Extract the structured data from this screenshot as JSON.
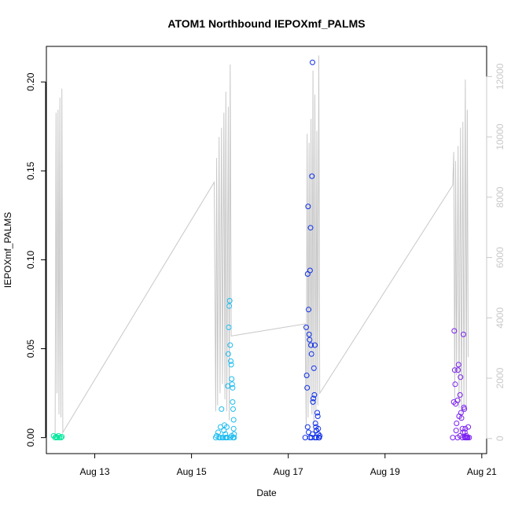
{
  "chart_data": {
    "type": "scatter",
    "title": "ATOM1 Northbound IEPOXmf_PALMS",
    "xlabel": "Date",
    "ylabel": "IEPOXmf_PALMS",
    "x_ticks": [
      "Aug 13",
      "Aug 15",
      "Aug 17",
      "Aug 19",
      "Aug 21"
    ],
    "x_tick_values": [
      13,
      15,
      17,
      19,
      21
    ],
    "xlim": [
      12.0,
      21.1
    ],
    "y_ticks": [
      "0.00",
      "0.05",
      "0.10",
      "0.15",
      "0.20"
    ],
    "y_tick_values": [
      0,
      0.05,
      0.1,
      0.15,
      0.2
    ],
    "ylim": [
      -0.009,
      0.22
    ],
    "y2_ticks": [
      "0",
      "2000",
      "4000",
      "6000",
      "8000",
      "10000",
      "12000"
    ],
    "y2_tick_values": [
      0,
      2000,
      4000,
      6000,
      8000,
      10000,
      12000
    ],
    "y2lim": [
      -500,
      13000
    ],
    "colors": {
      "altitude_line": "#c8c8c8",
      "right_axis": "#c8c8c8",
      "flight1": "#00e89c",
      "flight2": "#1cbcf0",
      "flight3": "#1030e8",
      "flight4": "#7a20f0"
    },
    "series": [
      {
        "color": "#00e89c",
        "points": [
          [
            12.15,
            0.001
          ],
          [
            12.18,
            0.0
          ],
          [
            12.2,
            0.0005
          ],
          [
            12.22,
            0.0
          ],
          [
            12.25,
            0.001
          ],
          [
            12.27,
            0.0
          ],
          [
            12.3,
            0.0
          ],
          [
            12.32,
            0.0005
          ]
        ]
      },
      {
        "color": "#1cbcf0",
        "points": [
          [
            15.5,
            0.0
          ],
          [
            15.52,
            0.001
          ],
          [
            15.55,
            0.003
          ],
          [
            15.57,
            0.0
          ],
          [
            15.6,
            0.006
          ],
          [
            15.62,
            0.016
          ],
          [
            15.65,
            0.0
          ],
          [
            15.67,
            0.004
          ],
          [
            15.68,
            0.007
          ],
          [
            15.7,
            0.002
          ],
          [
            15.72,
            0.0
          ],
          [
            15.73,
            0.006
          ],
          [
            15.75,
            0.029
          ],
          [
            15.76,
            0.047
          ],
          [
            15.77,
            0.062
          ],
          [
            15.78,
            0.074
          ],
          [
            15.79,
            0.077
          ],
          [
            15.8,
            0.052
          ],
          [
            15.81,
            0.043
          ],
          [
            15.82,
            0.041
          ],
          [
            15.83,
            0.033
          ],
          [
            15.84,
            0.03
          ],
          [
            15.85,
            0.028
          ],
          [
            15.85,
            0.02
          ],
          [
            15.86,
            0.016
          ],
          [
            15.87,
            0.01
          ],
          [
            15.87,
            0.005
          ],
          [
            15.88,
            0.002
          ],
          [
            15.88,
            0.0
          ],
          [
            15.86,
            0.0
          ],
          [
            15.6,
            0.0
          ],
          [
            15.64,
            0.0
          ],
          [
            15.7,
            0.0
          ],
          [
            15.74,
            0.0
          ],
          [
            15.8,
            0.0
          ],
          [
            15.83,
            0.001
          ]
        ]
      },
      {
        "color": "#1030e8",
        "points": [
          [
            17.35,
            0.0
          ],
          [
            17.37,
            0.062
          ],
          [
            17.38,
            0.035
          ],
          [
            17.39,
            0.028
          ],
          [
            17.4,
            0.092
          ],
          [
            17.41,
            0.13
          ],
          [
            17.42,
            0.072
          ],
          [
            17.43,
            0.058
          ],
          [
            17.44,
            0.055
          ],
          [
            17.45,
            0.094
          ],
          [
            17.46,
            0.118
          ],
          [
            17.47,
            0.052
          ],
          [
            17.48,
            0.047
          ],
          [
            17.49,
            0.147
          ],
          [
            17.5,
            0.211
          ],
          [
            17.51,
            0.02
          ],
          [
            17.52,
            0.022
          ],
          [
            17.53,
            0.039
          ],
          [
            17.54,
            0.024
          ],
          [
            17.55,
            0.052
          ],
          [
            17.56,
            0.008
          ],
          [
            17.57,
            0.006
          ],
          [
            17.58,
            0.004
          ],
          [
            17.6,
            0.014
          ],
          [
            17.61,
            0.012
          ],
          [
            17.62,
            0.002
          ],
          [
            17.63,
            0.0
          ],
          [
            17.64,
            0.0
          ],
          [
            17.65,
            0.001
          ],
          [
            17.4,
            0.006
          ],
          [
            17.42,
            0.003
          ],
          [
            17.45,
            0.0
          ],
          [
            17.48,
            0.0
          ],
          [
            17.5,
            0.002
          ],
          [
            17.55,
            0.0
          ],
          [
            17.58,
            0.0
          ],
          [
            17.62,
            0.005
          ]
        ]
      },
      {
        "color": "#7a20f0",
        "points": [
          [
            20.4,
            0.0
          ],
          [
            20.42,
            0.02
          ],
          [
            20.43,
            0.06
          ],
          [
            20.44,
            0.038
          ],
          [
            20.45,
            0.03
          ],
          [
            20.46,
            0.019
          ],
          [
            20.47,
            0.004
          ],
          [
            20.48,
            0.008
          ],
          [
            20.5,
            0.021
          ],
          [
            20.51,
            0.038
          ],
          [
            20.52,
            0.041
          ],
          [
            20.53,
            0.012
          ],
          [
            20.55,
            0.024
          ],
          [
            20.56,
            0.034
          ],
          [
            20.57,
            0.014
          ],
          [
            20.58,
            0.011
          ],
          [
            20.6,
            0.005
          ],
          [
            20.61,
            0.003
          ],
          [
            20.62,
            0.058
          ],
          [
            20.63,
            0.017
          ],
          [
            20.64,
            0.016
          ],
          [
            20.65,
            0.003
          ],
          [
            20.66,
            0.005
          ],
          [
            20.67,
            0.0
          ],
          [
            20.68,
            0.001
          ],
          [
            20.7,
            0.0
          ],
          [
            20.72,
            0.006
          ],
          [
            20.74,
            0.0
          ],
          [
            20.5,
            0.0
          ],
          [
            20.55,
            0.001
          ],
          [
            20.6,
            0.0
          ],
          [
            20.65,
            0.0
          ],
          [
            20.69,
            0.0
          ],
          [
            20.71,
            0.0
          ]
        ]
      }
    ],
    "altitude_line": {
      "note_units": "right axis",
      "points": [
        [
          12.18,
          0
        ],
        [
          12.2,
          10800
        ],
        [
          12.22,
          1500
        ],
        [
          12.24,
          10900
        ],
        [
          12.26,
          800
        ],
        [
          12.28,
          11300
        ],
        [
          12.3,
          700
        ],
        [
          12.32,
          11600
        ],
        [
          12.34,
          200
        ],
        [
          15.47,
          8500
        ],
        [
          15.5,
          900
        ],
        [
          15.52,
          9300
        ],
        [
          15.54,
          1100
        ],
        [
          15.57,
          10000
        ],
        [
          15.59,
          1500
        ],
        [
          15.62,
          10300
        ],
        [
          15.64,
          1800
        ],
        [
          15.67,
          10800
        ],
        [
          15.69,
          1300
        ],
        [
          15.71,
          11500
        ],
        [
          15.73,
          900
        ],
        [
          15.76,
          11000
        ],
        [
          15.78,
          600
        ],
        [
          15.8,
          12400
        ],
        [
          15.82,
          3400
        ],
        [
          17.35,
          3800
        ],
        [
          17.37,
          400
        ],
        [
          17.39,
          10100
        ],
        [
          17.41,
          700
        ],
        [
          17.43,
          9800
        ],
        [
          17.45,
          1200
        ],
        [
          17.47,
          10600
        ],
        [
          17.49,
          800
        ],
        [
          17.51,
          12200
        ],
        [
          17.53,
          500
        ],
        [
          17.55,
          11400
        ],
        [
          17.57,
          900
        ],
        [
          17.59,
          10200
        ],
        [
          17.61,
          1100
        ],
        [
          17.63,
          12700
        ],
        [
          17.65,
          1500
        ],
        [
          20.4,
          8400
        ],
        [
          20.42,
          9500
        ],
        [
          20.44,
          1200
        ],
        [
          20.46,
          9200
        ],
        [
          20.48,
          2100
        ],
        [
          20.51,
          9700
        ],
        [
          20.53,
          1000
        ],
        [
          20.56,
          10300
        ],
        [
          20.58,
          600
        ],
        [
          20.61,
          10500
        ],
        [
          20.63,
          900
        ],
        [
          20.66,
          11900
        ],
        [
          20.68,
          1000
        ],
        [
          20.7,
          10900
        ],
        [
          20.72,
          2700
        ]
      ]
    }
  }
}
